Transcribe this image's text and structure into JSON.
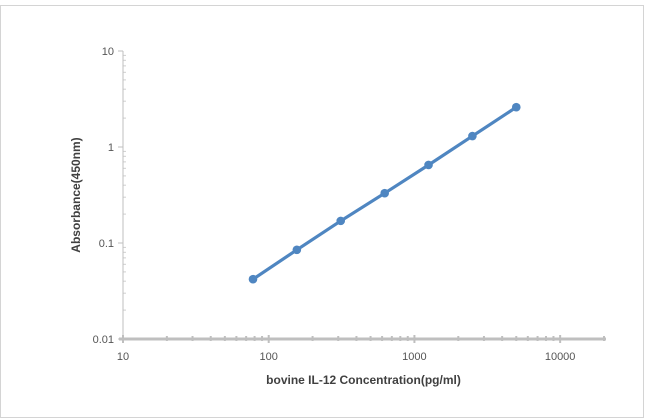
{
  "chart_data": {
    "type": "line",
    "title": "",
    "xlabel": "bovine IL-12 Concentration(pg/ml)",
    "ylabel": "Absorbance(450nm)",
    "x_scale": "log",
    "y_scale": "log",
    "xlim": [
      10,
      20000
    ],
    "ylim": [
      0.01,
      10
    ],
    "x_ticks": [
      10,
      100,
      1000,
      10000
    ],
    "x_tick_labels": [
      "10",
      "100",
      "1000",
      "10000"
    ],
    "y_ticks": [
      0.01,
      0.1,
      1,
      10
    ],
    "y_tick_labels": [
      "0.01",
      "0.1",
      "1",
      "10"
    ],
    "grid": false,
    "legend": "none",
    "series": [
      {
        "color": "#4f86c1",
        "x": [
          78,
          156,
          312,
          625,
          1250,
          2500,
          5000
        ],
        "y": [
          0.042,
          0.085,
          0.17,
          0.33,
          0.65,
          1.3,
          2.6
        ]
      }
    ]
  }
}
